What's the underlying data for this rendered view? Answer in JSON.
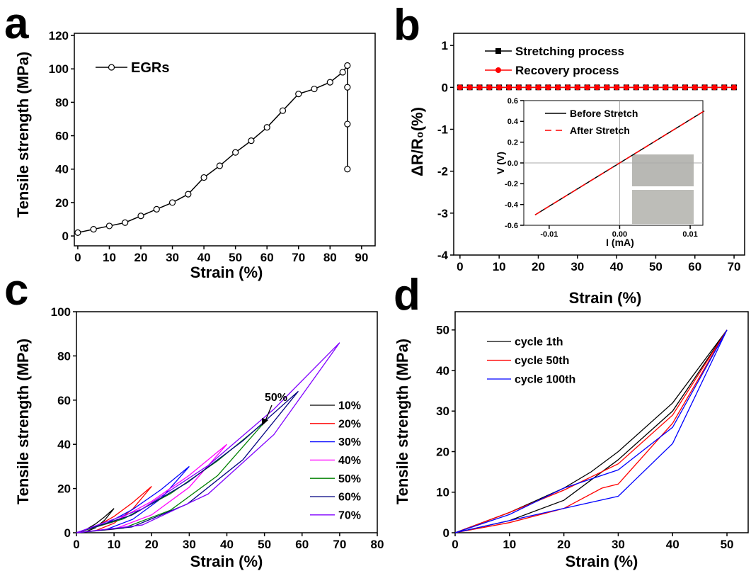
{
  "chart_data": [
    {
      "type": "line",
      "label": "a",
      "xlabel": "Strain (%)",
      "ylabel": "Tensile strength (MPa)",
      "xlim": [
        -1.1,
        94.3
      ],
      "ylim": [
        -5.9,
        121.3
      ],
      "xticks": [
        0,
        10,
        20,
        30,
        40,
        50,
        60,
        70,
        80,
        90
      ],
      "yticks": [
        0,
        20,
        40,
        60,
        80,
        100,
        120
      ],
      "series": [
        {
          "name": "EGRs",
          "color": "#000000",
          "marker": "open-circle",
          "x": [
            0,
            5,
            10,
            15,
            20,
            25,
            30,
            35,
            40,
            45,
            50,
            55,
            60,
            65,
            70,
            75,
            80,
            84,
            85.5,
            85.5,
            85.5,
            85.5
          ],
          "values": [
            2,
            4,
            6,
            8,
            12,
            16,
            20,
            25,
            35,
            42,
            50,
            57,
            65,
            75,
            85,
            88,
            92,
            98,
            102,
            89,
            67,
            40
          ]
        }
      ]
    },
    {
      "type": "line",
      "label": "b",
      "xlabel": "Strain (%)",
      "ylabel": "ΔR/R₀(%)",
      "xlim": [
        -1.6,
        72.7
      ],
      "ylim": [
        -4,
        1.29
      ],
      "xticks": [
        0,
        10,
        20,
        30,
        40,
        50,
        60,
        70
      ],
      "yticks": [
        -4,
        -3,
        -2,
        -1,
        0,
        1
      ],
      "series": [
        {
          "name": "Stretching process",
          "color": "#000000",
          "marker": "square",
          "x": [
            0,
            2.5,
            5,
            7.5,
            10,
            12.5,
            15,
            17.5,
            20,
            22.5,
            25,
            27.5,
            30,
            32.5,
            35,
            37.5,
            40,
            42.5,
            45,
            47.5,
            50,
            52.5,
            55,
            57.5,
            60,
            62.5,
            65,
            67.5,
            70
          ],
          "values": [
            0,
            0,
            0,
            0,
            0,
            0,
            0,
            0,
            0,
            0,
            0,
            0,
            0,
            0,
            0,
            0,
            0,
            0,
            0,
            0,
            0,
            0,
            0,
            0,
            0,
            0,
            0,
            0,
            0
          ]
        },
        {
          "name": "Recovery process",
          "color": "#ff0000",
          "marker": "circle",
          "x": [
            0,
            2.5,
            5,
            7.5,
            10,
            12.5,
            15,
            17.5,
            20,
            22.5,
            25,
            27.5,
            30,
            32.5,
            35,
            37.5,
            40,
            42.5,
            45,
            47.5,
            50,
            52.5,
            55,
            57.5,
            60,
            62.5,
            65,
            67.5,
            70
          ],
          "values": [
            0,
            0,
            0,
            0,
            0,
            0,
            0,
            0,
            0,
            0,
            0,
            0,
            0,
            0,
            0,
            0,
            0,
            0,
            0,
            0,
            0,
            0,
            0,
            0,
            0,
            0,
            0,
            0,
            0
          ]
        }
      ]
    },
    {
      "type": "line",
      "label": "c",
      "xlabel": "Strain (%)",
      "ylabel": "Tensile strength (MPa)",
      "xlim": [
        0,
        80
      ],
      "ylim": [
        0,
        100
      ],
      "xticks": [
        0,
        10,
        20,
        30,
        40,
        50,
        60,
        70,
        80
      ],
      "yticks": [
        0,
        20,
        40,
        60,
        80,
        100
      ],
      "annotations": [
        "50%"
      ],
      "series": [
        {
          "name": "10%",
          "color": "#000000",
          "x": [
            0,
            2.5,
            5,
            7.5,
            10,
            7.5,
            5,
            2.5,
            0
          ],
          "values": [
            0,
            1.4,
            3.9,
            7.2,
            11,
            5.7,
            2.2,
            0.5,
            0
          ]
        },
        {
          "name": "20%",
          "color": "#ff0000",
          "x": [
            0,
            5,
            10,
            15,
            20,
            15,
            10,
            5,
            0
          ],
          "values": [
            0,
            2.6,
            7.4,
            13.7,
            21,
            10.8,
            4.3,
            0.9,
            0
          ]
        },
        {
          "name": "30%",
          "color": "#0000ff",
          "x": [
            0,
            7.5,
            15,
            22.5,
            30,
            22.5,
            15,
            7.5,
            0
          ],
          "values": [
            0,
            3.8,
            10.6,
            19.5,
            30,
            15.5,
            6.1,
            1.2,
            0
          ]
        },
        {
          "name": "40%",
          "color": "#ff00ff",
          "x": [
            0,
            10,
            20,
            30,
            40,
            30,
            20,
            10,
            0
          ],
          "values": [
            0,
            5,
            14.2,
            26,
            40,
            20.6,
            8.1,
            1.6,
            0
          ]
        },
        {
          "name": "50%",
          "color": "#008000",
          "x": [
            0,
            12.5,
            25,
            37.5,
            50,
            37.5,
            25,
            12.5,
            0
          ],
          "values": [
            0,
            6.3,
            17.7,
            32.5,
            50,
            25.8,
            10.2,
            2.1,
            0
          ]
        },
        {
          "name": "60%",
          "color": "#000080",
          "x": [
            0,
            14.75,
            29.5,
            44.25,
            59,
            44.25,
            29.5,
            14.75,
            0
          ],
          "values": [
            0,
            8,
            22.7,
            41.6,
            64,
            33,
            13,
            2.6,
            0
          ]
        },
        {
          "name": "70%",
          "color": "#8000ff",
          "x": [
            0,
            17.5,
            35,
            52.5,
            70,
            52.5,
            35,
            17.5,
            0
          ],
          "values": [
            0,
            10.8,
            30.4,
            55.9,
            86,
            44.4,
            17.5,
            3.5,
            0
          ]
        }
      ]
    },
    {
      "type": "line",
      "label": "d",
      "xlabel": "Strain (%)",
      "ylabel": "Tensile strength (MPa)",
      "xlim": [
        0,
        53.9
      ],
      "ylim": [
        0,
        54.5
      ],
      "xticks": [
        0,
        10,
        20,
        30,
        40,
        50
      ],
      "yticks": [
        0,
        10,
        20,
        30,
        40,
        50
      ],
      "series": [
        {
          "name": "cycle 1th",
          "color": "#000000",
          "x": [
            0,
            10,
            20,
            25,
            30,
            40,
            50,
            40,
            30,
            20,
            10,
            0
          ],
          "values": [
            0,
            5,
            11,
            15,
            20,
            32,
            50,
            30,
            18,
            8,
            3,
            0
          ]
        },
        {
          "name": "cycle 50th",
          "color": "#ff0000",
          "x": [
            0,
            10,
            20,
            30,
            40,
            50,
            40,
            30,
            27,
            20,
            10,
            0
          ],
          "values": [
            0,
            5,
            10.5,
            17,
            29,
            50,
            27,
            12,
            11,
            6,
            2.5,
            0
          ]
        },
        {
          "name": "cycle 100th",
          "color": "#0000ff",
          "x": [
            0,
            10,
            20,
            30,
            40,
            50,
            40,
            30,
            20,
            10,
            0
          ],
          "values": [
            0,
            4.5,
            11,
            15.5,
            26,
            50,
            22,
            9,
            6,
            3,
            0
          ]
        }
      ]
    },
    {
      "type": "line",
      "xlabel": "I (mA)",
      "ylabel": "V (V)",
      "zero_lines": true,
      "xlim": [
        -0.0136,
        0.0118
      ],
      "ylim": [
        -0.6,
        0.6
      ],
      "xticks": [
        -0.01,
        {
          "value": 0,
          "label": "0.00"
        },
        0.01
      ],
      "yticks": [
        0.6,
        0.4,
        0.2,
        {
          "value": 0,
          "label": "0.0"
        },
        -0.2,
        -0.4,
        -0.6
      ],
      "series": [
        {
          "name": "Before Stretch",
          "color": "#000000",
          "x": [
            -0.012,
            0.012
          ],
          "values": [
            -0.5,
            0.5
          ]
        },
        {
          "name": "After Stretch",
          "color": "#ff0000",
          "dash": true,
          "x": [
            -0.012,
            0.012
          ],
          "values": [
            -0.5,
            0.5
          ]
        }
      ]
    }
  ]
}
